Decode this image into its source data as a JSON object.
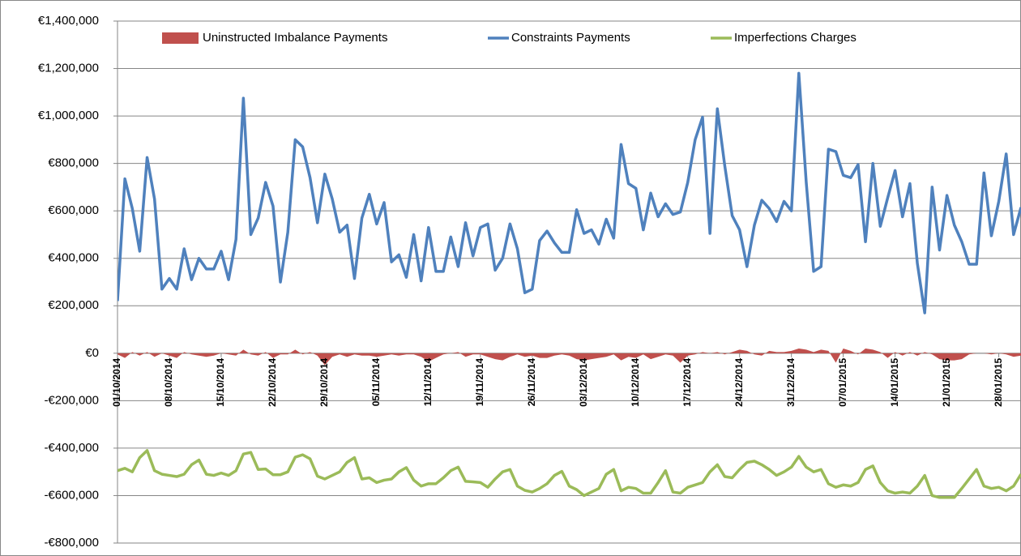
{
  "chart_data": {
    "type": "line",
    "series": [
      {
        "name": "Uninstructed Imbalance Payments",
        "type": "area",
        "color": "#c0504d",
        "values": [
          -5000,
          -20000,
          5000,
          -10000,
          5000,
          -15000,
          0,
          -10000,
          -20000,
          5000,
          -5000,
          -10000,
          -15000,
          -10000,
          0,
          -5000,
          -10000,
          15000,
          -5000,
          -10000,
          5000,
          -20000,
          -5000,
          -5000,
          15000,
          -5000,
          5000,
          -10000,
          -50000,
          -15000,
          -5000,
          -15000,
          -5000,
          -10000,
          -10000,
          -15000,
          -10000,
          -5000,
          -10000,
          -5000,
          -5000,
          -15000,
          -35000,
          -20000,
          -5000,
          0,
          5000,
          -15000,
          -5000,
          -5000,
          -15000,
          -25000,
          -30000,
          -15000,
          -5000,
          -15000,
          -10000,
          -20000,
          -20000,
          -10000,
          -5000,
          -10000,
          -25000,
          -30000,
          -25000,
          -20000,
          -15000,
          -5000,
          -30000,
          -15000,
          -20000,
          -5000,
          -25000,
          -15000,
          -5000,
          -10000,
          -40000,
          -10000,
          -5000,
          5000,
          0,
          5000,
          -5000,
          5000,
          15000,
          10000,
          -5000,
          -10000,
          10000,
          5000,
          5000,
          10000,
          20000,
          15000,
          5000,
          15000,
          10000,
          -40000,
          20000,
          10000,
          -5000,
          20000,
          15000,
          5000,
          -20000,
          5000,
          -10000,
          5000,
          -10000,
          5000,
          -5000,
          -25000,
          -30000,
          -30000,
          -25000,
          -5000,
          0,
          0,
          -5000,
          0,
          -5000,
          -15000,
          -10000
        ]
      },
      {
        "name": "Constraints Payments",
        "type": "line",
        "color": "#4f81bd",
        "values": [
          220000,
          735000,
          610000,
          430000,
          825000,
          650000,
          270000,
          315000,
          270000,
          440000,
          310000,
          400000,
          355000,
          355000,
          430000,
          310000,
          480000,
          1075000,
          500000,
          570000,
          720000,
          620000,
          300000,
          510000,
          900000,
          870000,
          740000,
          550000,
          755000,
          650000,
          510000,
          540000,
          315000,
          570000,
          670000,
          545000,
          635000,
          385000,
          415000,
          320000,
          500000,
          305000,
          530000,
          345000,
          345000,
          490000,
          365000,
          550000,
          410000,
          530000,
          545000,
          350000,
          400000,
          545000,
          440000,
          255000,
          270000,
          475000,
          515000,
          465000,
          425000,
          425000,
          605000,
          505000,
          520000,
          460000,
          565000,
          485000,
          880000,
          715000,
          695000,
          520000,
          675000,
          575000,
          630000,
          585000,
          595000,
          720000,
          900000,
          995000,
          505000,
          1030000,
          790000,
          580000,
          520000,
          365000,
          540000,
          645000,
          610000,
          555000,
          640000,
          600000,
          1180000,
          720000,
          345000,
          365000,
          860000,
          850000,
          750000,
          740000,
          795000,
          470000,
          800000,
          535000,
          655000,
          770000,
          575000,
          715000,
          380000,
          170000,
          700000,
          435000,
          665000,
          540000,
          470000,
          375000,
          375000,
          760000,
          495000,
          640000,
          840000,
          500000,
          615000
        ]
      },
      {
        "name": "Imperfections Charges",
        "type": "line",
        "color": "#9bbb59",
        "values": [
          -495000,
          -485000,
          -500000,
          -440000,
          -410000,
          -495000,
          -510000,
          -515000,
          -520000,
          -510000,
          -470000,
          -450000,
          -510000,
          -515000,
          -505000,
          -515000,
          -495000,
          -425000,
          -418000,
          -490000,
          -488000,
          -512000,
          -512000,
          -500000,
          -438000,
          -428000,
          -445000,
          -518000,
          -530000,
          -515000,
          -500000,
          -460000,
          -440000,
          -530000,
          -525000,
          -545000,
          -535000,
          -530000,
          -500000,
          -482000,
          -535000,
          -560000,
          -550000,
          -550000,
          -525000,
          -495000,
          -480000,
          -540000,
          -542000,
          -545000,
          -565000,
          -530000,
          -500000,
          -490000,
          -560000,
          -578000,
          -585000,
          -570000,
          -550000,
          -515000,
          -498000,
          -560000,
          -575000,
          -600000,
          -585000,
          -570000,
          -510000,
          -490000,
          -580000,
          -565000,
          -570000,
          -590000,
          -590000,
          -545000,
          -495000,
          -585000,
          -590000,
          -565000,
          -555000,
          -545000,
          -500000,
          -470000,
          -520000,
          -525000,
          -490000,
          -460000,
          -455000,
          -470000,
          -490000,
          -515000,
          -500000,
          -480000,
          -435000,
          -480000,
          -500000,
          -490000,
          -550000,
          -565000,
          -555000,
          -560000,
          -545000,
          -490000,
          -475000,
          -545000,
          -580000,
          -590000,
          -585000,
          -590000,
          -560000,
          -515000,
          -600000,
          -608000,
          -608000,
          -608000,
          -570000,
          -530000,
          -490000,
          -560000,
          -570000,
          -565000,
          -580000,
          -560000,
          -510000
        ]
      }
    ],
    "categories": [
      "01/10/2014",
      null,
      null,
      null,
      null,
      null,
      null,
      "08/10/2014",
      null,
      null,
      null,
      null,
      null,
      null,
      "15/10/2014",
      null,
      null,
      null,
      null,
      null,
      null,
      "22/10/2014",
      null,
      null,
      null,
      null,
      null,
      null,
      "29/10/2014",
      null,
      null,
      null,
      null,
      null,
      null,
      "05/11/2014",
      null,
      null,
      null,
      null,
      null,
      null,
      "12/11/2014",
      null,
      null,
      null,
      null,
      null,
      null,
      "19/11/2014",
      null,
      null,
      null,
      null,
      null,
      null,
      "26/11/2014",
      null,
      null,
      null,
      null,
      null,
      null,
      "03/12/2014",
      null,
      null,
      null,
      null,
      null,
      null,
      "10/12/2014",
      null,
      null,
      null,
      null,
      null,
      null,
      "17/12/2014",
      null,
      null,
      null,
      null,
      null,
      null,
      "24/12/2014",
      null,
      null,
      null,
      null,
      null,
      null,
      "31/12/2014",
      null,
      null,
      null,
      null,
      null,
      null,
      "07/01/2015",
      null,
      null,
      null,
      null,
      null,
      null,
      "14/01/2015",
      null,
      null,
      null,
      null,
      null,
      null,
      "21/01/2015",
      null,
      null,
      null,
      null,
      null,
      null,
      "28/01/2015",
      null,
      null,
      null
    ],
    "ylim": [
      -800000,
      1400000
    ],
    "yticks": [
      {
        "value": -800000,
        "label": "-€800,000"
      },
      {
        "value": -600000,
        "label": "-€600,000"
      },
      {
        "value": -400000,
        "label": "-€400,000"
      },
      {
        "value": -200000,
        "label": "-€200,000"
      },
      {
        "value": 0,
        "label": "€0"
      },
      {
        "value": 200000,
        "label": "€200,000"
      },
      {
        "value": 400000,
        "label": "€400,000"
      },
      {
        "value": 600000,
        "label": "€600,000"
      },
      {
        "value": 800000,
        "label": "€800,000"
      },
      {
        "value": 1000000,
        "label": "€1,000,000"
      },
      {
        "value": 1200000,
        "label": "€1,200,000"
      },
      {
        "value": 1400000,
        "label": "€1,400,000"
      }
    ],
    "grid": true,
    "legend": "top"
  }
}
